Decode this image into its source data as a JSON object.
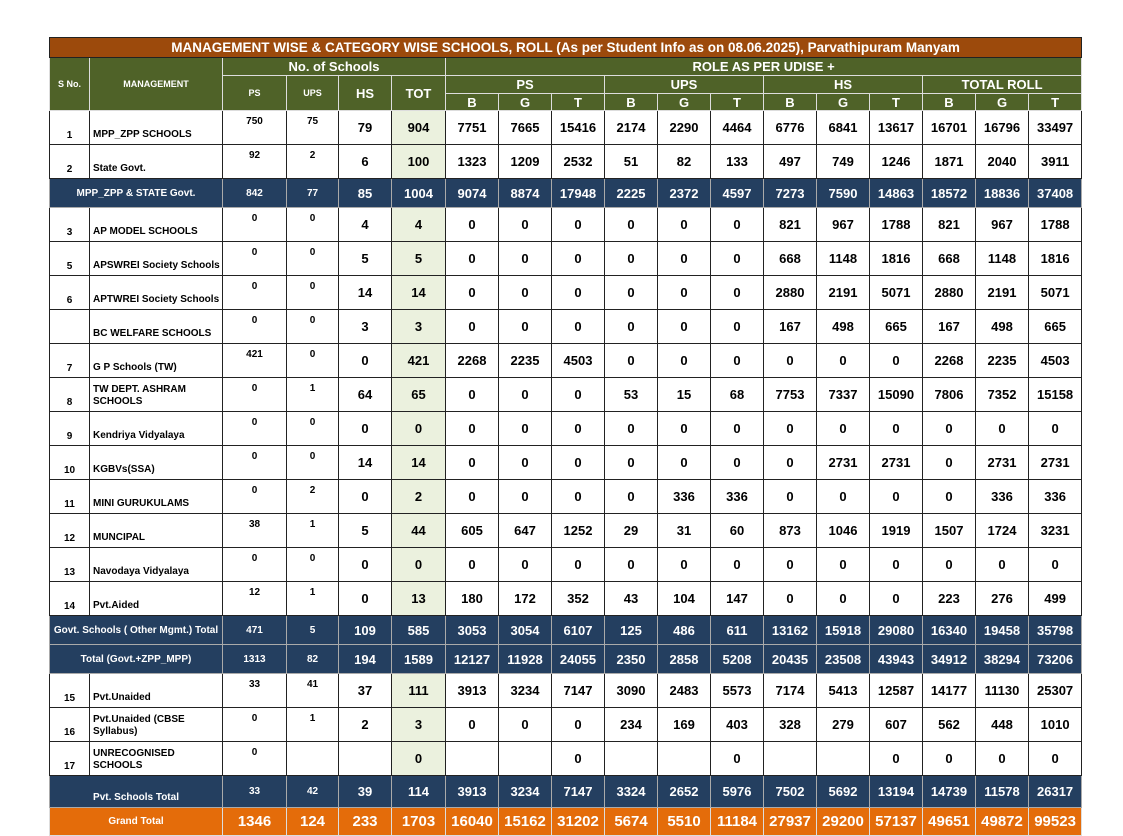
{
  "title": "MANAGEMENT WISE &  CATEGORY WISE  SCHOOLS, ROLL (As per Student Info as on 08.06.2025), Parvathipuram Manyam",
  "headers": {
    "sno": "S No.",
    "management": "MANAGEMENT",
    "no_of_schools": "No. of Schools",
    "school_cols": [
      "PS",
      "UPS",
      "HS",
      "TOT"
    ],
    "roll_group": "ROLE AS PER UDISE +",
    "roll_subgroups": [
      "PS",
      "UPS",
      "HS",
      "TOTAL ROLL"
    ],
    "bgt": [
      "B",
      "G",
      "T"
    ]
  },
  "colors": {
    "title_bg": "#9c4a0c",
    "header_bg": "#4f6228",
    "subtotal_bg": "#243f60",
    "grand_total_bg": "#e46c0a",
    "tot_col_bg": "#ebf1de"
  },
  "rows": [
    {
      "type": "data",
      "sno": "1",
      "name": "MPP_ZPP SCHOOLS",
      "values": [
        "750",
        "75",
        "79",
        "904",
        "7751",
        "7665",
        "15416",
        "2174",
        "2290",
        "4464",
        "6776",
        "6841",
        "13617",
        "16701",
        "16796",
        "33497"
      ]
    },
    {
      "type": "data",
      "sno": "2",
      "name": "State Govt.",
      "values": [
        "92",
        "2",
        "6",
        "100",
        "1323",
        "1209",
        "2532",
        "51",
        "82",
        "133",
        "497",
        "749",
        "1246",
        "1871",
        "2040",
        "3911"
      ]
    },
    {
      "type": "sub",
      "sno": "",
      "name": "MPP_ZPP & STATE Govt.",
      "values": [
        "842",
        "77",
        "85",
        "1004",
        "9074",
        "8874",
        "17948",
        "2225",
        "2372",
        "4597",
        "7273",
        "7590",
        "14863",
        "18572",
        "18836",
        "37408"
      ]
    },
    {
      "type": "data",
      "sno": "3",
      "name": "AP MODEL SCHOOLS",
      "values": [
        "0",
        "0",
        "4",
        "4",
        "0",
        "0",
        "0",
        "0",
        "0",
        "0",
        "821",
        "967",
        "1788",
        "821",
        "967",
        "1788"
      ]
    },
    {
      "type": "data",
      "sno": "5",
      "name": "APSWREI Society Schools",
      "values": [
        "0",
        "0",
        "5",
        "5",
        "0",
        "0",
        "0",
        "0",
        "0",
        "0",
        "668",
        "1148",
        "1816",
        "668",
        "1148",
        "1816"
      ]
    },
    {
      "type": "data",
      "sno": "6",
      "name": "APTWREI Society Schools",
      "values": [
        "0",
        "0",
        "14",
        "14",
        "0",
        "0",
        "0",
        "0",
        "0",
        "0",
        "2880",
        "2191",
        "5071",
        "2880",
        "2191",
        "5071"
      ]
    },
    {
      "type": "data",
      "sno": "",
      "name": "BC WELFARE SCHOOLS",
      "values": [
        "0",
        "0",
        "3",
        "3",
        "0",
        "0",
        "0",
        "0",
        "0",
        "0",
        "167",
        "498",
        "665",
        "167",
        "498",
        "665"
      ]
    },
    {
      "type": "data",
      "sno": "7",
      "name": "G P Schools (TW)",
      "values": [
        "421",
        "0",
        "0",
        "421",
        "2268",
        "2235",
        "4503",
        "0",
        "0",
        "0",
        "0",
        "0",
        "0",
        "2268",
        "2235",
        "4503"
      ]
    },
    {
      "type": "data",
      "sno": "8",
      "name": "TW DEPT. ASHRAM SCHOOLS",
      "values": [
        "0",
        "1",
        "64",
        "65",
        "0",
        "0",
        "0",
        "53",
        "15",
        "68",
        "7753",
        "7337",
        "15090",
        "7806",
        "7352",
        "15158"
      ]
    },
    {
      "type": "data",
      "sno": "9",
      "name": "Kendriya Vidyalaya",
      "values": [
        "0",
        "0",
        "0",
        "0",
        "0",
        "0",
        "0",
        "0",
        "0",
        "0",
        "0",
        "0",
        "0",
        "0",
        "0",
        "0"
      ]
    },
    {
      "type": "data",
      "sno": "10",
      "name": "KGBVs(SSA)",
      "values": [
        "0",
        "0",
        "14",
        "14",
        "0",
        "0",
        "0",
        "0",
        "0",
        "0",
        "0",
        "2731",
        "2731",
        "0",
        "2731",
        "2731"
      ]
    },
    {
      "type": "data",
      "sno": "11",
      "name": "MINI GURUKULAMS",
      "values": [
        "0",
        "2",
        "0",
        "2",
        "0",
        "0",
        "0",
        "0",
        "336",
        "336",
        "0",
        "0",
        "0",
        "0",
        "336",
        "336"
      ]
    },
    {
      "type": "data",
      "sno": "12",
      "name": "MUNCIPAL",
      "values": [
        "38",
        "1",
        "5",
        "44",
        "605",
        "647",
        "1252",
        "29",
        "31",
        "60",
        "873",
        "1046",
        "1919",
        "1507",
        "1724",
        "3231"
      ]
    },
    {
      "type": "data",
      "sno": "13",
      "name": "Navodaya Vidyalaya",
      "values": [
        "0",
        "0",
        "0",
        "0",
        "0",
        "0",
        "0",
        "0",
        "0",
        "0",
        "0",
        "0",
        "0",
        "0",
        "0",
        "0"
      ]
    },
    {
      "type": "data",
      "sno": "14",
      "name": "Pvt.Aided",
      "values": [
        "12",
        "1",
        "0",
        "13",
        "180",
        "172",
        "352",
        "43",
        "104",
        "147",
        "0",
        "0",
        "0",
        "223",
        "276",
        "499"
      ]
    },
    {
      "type": "sub",
      "sno": "",
      "name": "Govt. Schools ( Other Mgmt.) Total",
      "values": [
        "471",
        "5",
        "109",
        "585",
        "3053",
        "3054",
        "6107",
        "125",
        "486",
        "611",
        "13162",
        "15918",
        "29080",
        "16340",
        "19458",
        "35798"
      ]
    },
    {
      "type": "sub",
      "sno": "",
      "name": "Total (Govt.+ZPP_MPP)",
      "values": [
        "1313",
        "82",
        "194",
        "1589",
        "12127",
        "11928",
        "24055",
        "2350",
        "2858",
        "5208",
        "20435",
        "23508",
        "43943",
        "34912",
        "38294",
        "73206"
      ]
    },
    {
      "type": "data",
      "sno": "15",
      "name": "Pvt.Unaided",
      "values": [
        "33",
        "41",
        "37",
        "111",
        "3913",
        "3234",
        "7147",
        "3090",
        "2483",
        "5573",
        "7174",
        "5413",
        "12587",
        "14177",
        "11130",
        "25307"
      ]
    },
    {
      "type": "data",
      "sno": "16",
      "name": "Pvt.Unaided (CBSE Syllabus)",
      "values": [
        "0",
        "1",
        "2",
        "3",
        "0",
        "0",
        "0",
        "234",
        "169",
        "403",
        "328",
        "279",
        "607",
        "562",
        "448",
        "1010"
      ]
    },
    {
      "type": "data",
      "sno": "17",
      "name": "UNRECOGNISED SCHOOLS",
      "values": [
        "0",
        "",
        "",
        "0",
        "",
        "",
        "0",
        "",
        "",
        "0",
        "",
        "",
        "0",
        "0",
        "0",
        "0"
      ]
    },
    {
      "type": "sub",
      "sno": "",
      "name": "Pvt. Schools  Total",
      "values": [
        "33",
        "42",
        "39",
        "114",
        "3913",
        "3234",
        "7147",
        "3324",
        "2652",
        "5976",
        "7502",
        "5692",
        "13194",
        "14739",
        "11578",
        "26317"
      ]
    },
    {
      "type": "grand",
      "sno": "",
      "name": "Grand Total",
      "values": [
        "1346",
        "124",
        "233",
        "1703",
        "16040",
        "15162",
        "31202",
        "5674",
        "5510",
        "11184",
        "27937",
        "29200",
        "57137",
        "49651",
        "49872",
        "99523"
      ]
    }
  ]
}
